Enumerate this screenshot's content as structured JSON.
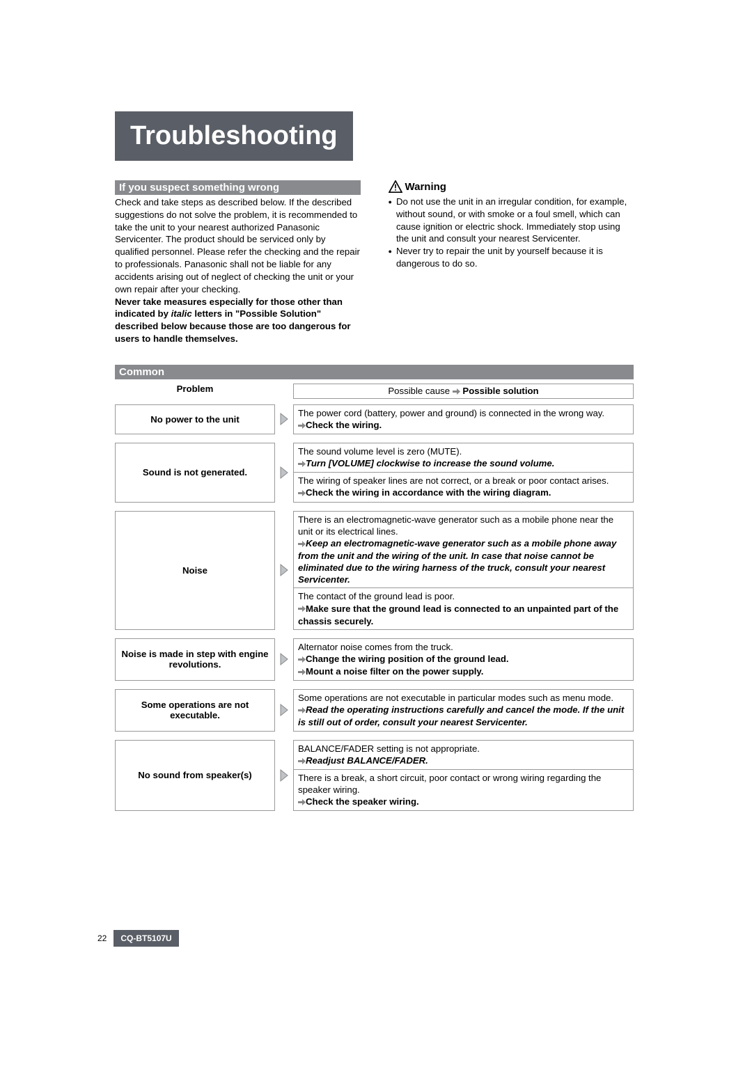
{
  "title": "Troubleshooting",
  "suspect_header": "If you suspect something wrong",
  "suspect_body_pre": "Check and take steps as described below.\nIf the described suggestions do not solve the problem, it is recommended to take the unit to your nearest authorized Panasonic Servicenter. The product should be serviced only by qualified personnel. Please refer the checking and the repair to professionals. Panasonic shall not be liable for any accidents arising out of neglect of checking the unit or your own repair after your checking.",
  "suspect_bold1": "Never take measures especially for those other than indicated by ",
  "suspect_italic": "italic",
  "suspect_bold2": " letters in \"Possible Solution\" described below because those are too dangerous for users to handle themselves.",
  "warning_title": "Warning",
  "warning_items": [
    "Do not use the unit in an irregular condition, for example, without sound, or with smoke or a foul smell, which can cause ignition or electric shock. Immediately stop using the unit and consult your nearest Servicenter.",
    "Never try to repair the unit by yourself because it is dangerous to do so."
  ],
  "section_bar": "Common",
  "col_problem": "Problem",
  "col_cause": "Possible cause",
  "col_solution": "Possible solution",
  "rows": [
    {
      "problem": "No power to the unit",
      "blocks": [
        {
          "cause": "The power cord (battery, power and ground) is connected in the wrong way.",
          "sol": "Check the wiring.",
          "italic": false
        }
      ]
    },
    {
      "problem": "Sound is not generated.",
      "blocks": [
        {
          "cause": "The sound volume level is zero (MUTE).",
          "sol": "Turn [VOLUME] clockwise to increase the sound volume.",
          "italic": true
        },
        {
          "cause": "The wiring of speaker lines are not correct, or a break or poor contact arises.",
          "sol": "Check the wiring in accordance with the wiring diagram.",
          "italic": false
        }
      ]
    },
    {
      "problem": "Noise",
      "blocks": [
        {
          "cause": "There is an electromagnetic-wave generator such as a mobile phone near the unit or its electrical lines.",
          "sol": "Keep an electromagnetic-wave generator such as a mobile phone away from the unit and the wiring of the unit. In case that noise cannot be eliminated due to the wiring harness of the truck, consult your nearest Servicenter.",
          "italic": true
        },
        {
          "cause": "The contact of the ground lead is poor.",
          "sol": "Make sure that the ground lead is connected to an unpainted part of the chassis securely.",
          "italic": false
        }
      ]
    },
    {
      "problem": "Noise is made in step with engine revolutions.",
      "blocks": [
        {
          "cause": "Alternator noise comes from the truck.",
          "sol2": [
            "Change the wiring position of the ground lead.",
            "Mount a noise filter on the power supply."
          ],
          "italic": false
        }
      ]
    },
    {
      "problem": "Some operations are not executable.",
      "blocks": [
        {
          "cause": "Some operations are not executable in particular modes such as menu mode.",
          "sol": "Read the operating instructions carefully and cancel the mode. If the unit is still out of order, consult your nearest Servicenter.",
          "italic": true
        }
      ]
    },
    {
      "problem": "No sound from speaker(s)",
      "blocks": [
        {
          "cause": "BALANCE/FADER setting is not appropriate.",
          "sol": "Readjust BALANCE/FADER.",
          "italic": true
        },
        {
          "cause": "There is a break, a short circuit, poor contact or wrong wiring regarding the speaker wiring.",
          "sol": "Check the speaker wiring.",
          "italic": false
        }
      ]
    }
  ],
  "page_number": "22",
  "model": "CQ-BT5107U"
}
